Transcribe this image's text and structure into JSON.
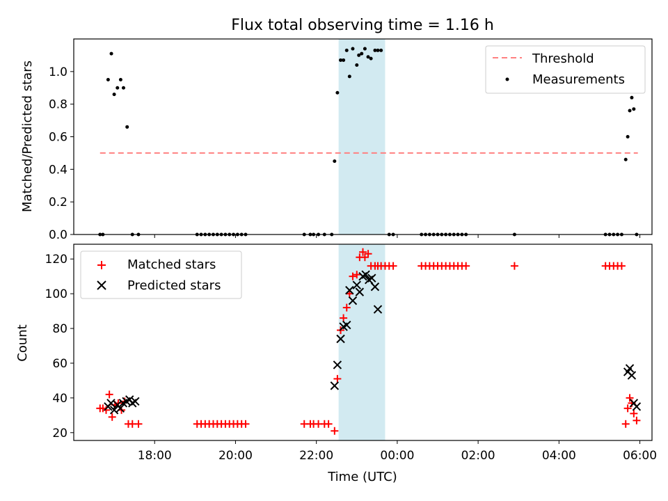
{
  "chart_data": {
    "title": "Flux total observing time = 1.16 h",
    "xlabel": "Time (UTC)",
    "xlim": [
      16.0,
      30.3
    ],
    "x_ticks": [
      18,
      20,
      22,
      24,
      26,
      28,
      30
    ],
    "x_tick_labels": [
      "18:00",
      "20:00",
      "22:00",
      "00:00",
      "02:00",
      "04:00",
      "06:00"
    ],
    "x_units": "hours since 00:00 of first day",
    "shaded_span": [
      22.55,
      23.7
    ],
    "shade_color": "#add8e6",
    "panels": [
      {
        "type": "scatter",
        "ylabel": "Matched/Predicted stars",
        "ylim": [
          0,
          1.2
        ],
        "y_ticks": [
          0.0,
          0.2,
          0.4,
          0.6,
          0.8,
          1.0
        ],
        "y_tick_labels": [
          "0.0",
          "0.2",
          "0.4",
          "0.6",
          "0.8",
          "1.0"
        ],
        "legend": [
          "Threshold",
          "Measurements"
        ],
        "legend_loc": "upper right",
        "threshold": {
          "name": "Threshold",
          "value": 0.5,
          "x_range": [
            16.65,
            29.95
          ],
          "color": "#ff8080"
        },
        "series": [
          {
            "name": "Measurements",
            "color": "#000000",
            "x": [
              16.65,
              16.72,
              16.85,
              16.93,
              17.0,
              17.08,
              17.16,
              17.23,
              17.32,
              17.45,
              17.6,
              19.05,
              19.15,
              19.25,
              19.35,
              19.45,
              19.55,
              19.65,
              19.75,
              19.85,
              19.95,
              20.05,
              20.15,
              20.25,
              21.7,
              21.85,
              21.93,
              22.05,
              22.2,
              22.38,
              22.45,
              22.52,
              22.6,
              22.67,
              22.75,
              22.82,
              22.9,
              23.0,
              23.05,
              23.12,
              23.2,
              23.28,
              23.35,
              23.45,
              23.52,
              23.6,
              23.8,
              23.9,
              24.6,
              24.7,
              24.8,
              24.9,
              25.0,
              25.1,
              25.2,
              25.3,
              25.4,
              25.5,
              25.6,
              25.7,
              26.9,
              29.15,
              29.25,
              29.35,
              29.45,
              29.55,
              29.65,
              29.7,
              29.75,
              29.8,
              29.85,
              29.92
            ],
            "y": [
              0,
              0,
              0.95,
              1.11,
              0.86,
              0.9,
              0.95,
              0.9,
              0.66,
              0,
              0,
              0,
              0,
              0,
              0,
              0,
              0,
              0,
              0,
              0,
              0,
              0,
              0,
              0,
              0,
              0,
              0,
              0,
              0,
              0,
              0.45,
              0.87,
              1.07,
              1.07,
              1.13,
              0.97,
              1.14,
              1.04,
              1.1,
              1.11,
              1.14,
              1.09,
              1.08,
              1.13,
              1.13,
              1.13,
              0,
              0,
              0,
              0,
              0,
              0,
              0,
              0,
              0,
              0,
              0,
              0,
              0,
              0,
              0,
              0,
              0,
              0,
              0,
              0,
              0.46,
              0.6,
              0.76,
              0.84,
              0.77,
              0
            ]
          }
        ]
      },
      {
        "type": "scatter",
        "ylabel": "Count",
        "ylim": [
          15.5,
          128.5
        ],
        "y_ticks": [
          20,
          40,
          60,
          80,
          100,
          120
        ],
        "y_tick_labels": [
          "20",
          "40",
          "60",
          "80",
          "100",
          "120"
        ],
        "legend": [
          "Matched stars",
          "Predicted stars"
        ],
        "legend_loc": "upper left",
        "series": [
          {
            "name": "Matched stars",
            "marker": "plus",
            "color": "#ff0000",
            "x": [
              16.65,
              16.72,
              16.8,
              16.88,
              16.95,
              17.02,
              17.1,
              17.18,
              17.26,
              17.35,
              17.45,
              17.6,
              19.05,
              19.15,
              19.25,
              19.35,
              19.45,
              19.55,
              19.65,
              19.75,
              19.85,
              19.95,
              20.05,
              20.15,
              20.25,
              21.7,
              21.85,
              21.93,
              22.05,
              22.2,
              22.3,
              22.45,
              22.52,
              22.6,
              22.67,
              22.75,
              22.82,
              22.9,
              23.0,
              23.07,
              23.15,
              23.2,
              23.28,
              23.35,
              23.45,
              23.52,
              23.6,
              23.7,
              23.8,
              23.9,
              24.6,
              24.7,
              24.8,
              24.9,
              25.0,
              25.1,
              25.2,
              25.3,
              25.4,
              25.5,
              25.6,
              25.7,
              26.9,
              29.15,
              29.25,
              29.35,
              29.45,
              29.55,
              29.65,
              29.7,
              29.75,
              29.8,
              29.85,
              29.92
            ],
            "y": [
              34,
              34,
              33,
              42,
              29,
              36,
              37,
              33,
              38,
              25,
              25,
              25,
              25,
              25,
              25,
              25,
              25,
              25,
              25,
              25,
              25,
              25,
              25,
              25,
              25,
              25,
              25,
              25,
              25,
              25,
              25,
              21,
              51,
              79,
              86,
              92,
              100,
              110,
              111,
              121,
              124,
              121,
              123,
              116,
              116,
              116,
              116,
              116,
              116,
              116,
              116,
              116,
              116,
              116,
              116,
              116,
              116,
              116,
              116,
              116,
              116,
              116,
              116,
              116,
              116,
              116,
              116,
              116,
              25,
              34,
              40,
              37,
              31,
              27
            ]
          },
          {
            "name": "Predicted stars",
            "marker": "x",
            "color": "#000000",
            "x": [
              16.85,
              16.92,
              17.0,
              17.08,
              17.15,
              17.22,
              17.3,
              17.38,
              17.45,
              17.52,
              22.45,
              22.52,
              22.6,
              22.67,
              22.75,
              22.82,
              22.9,
              23.0,
              23.07,
              23.15,
              23.22,
              23.3,
              23.37,
              23.45,
              23.52,
              29.7,
              29.75,
              29.8,
              29.85,
              29.92
            ],
            "y": [
              35,
              37,
              33,
              36,
              34,
              37,
              38,
              39,
              37,
              38,
              47,
              59,
              74,
              81,
              82,
              102,
              96,
              105,
              101,
              110,
              111,
              108,
              109,
              104,
              91,
              55,
              57,
              53,
              37,
              35
            ]
          }
        ]
      }
    ]
  }
}
